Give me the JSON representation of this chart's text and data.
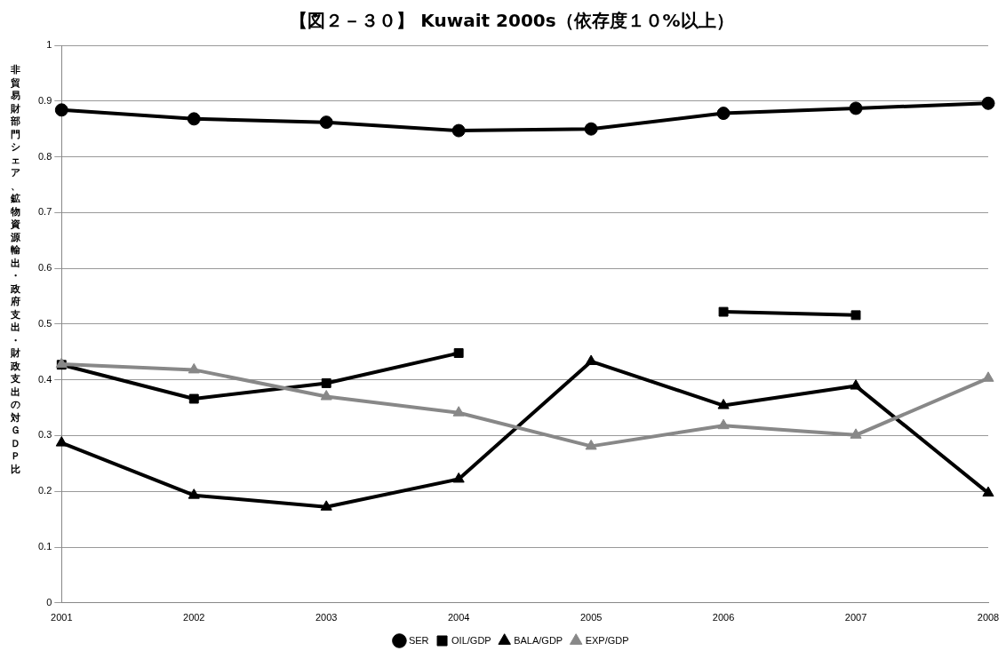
{
  "chart_data": {
    "type": "line",
    "title": "【図２－３０】 Kuwait 2000s（依存度１０%以上）",
    "ylabel": "非貿易財部門シェア、鉱物資源輸出・政府支出・財政支出の対ＧＤＰ比",
    "categories": [
      "2001",
      "2002",
      "2003",
      "2004",
      "2005",
      "2006",
      "2007",
      "2008"
    ],
    "series": [
      {
        "name": "SER",
        "color": "#000000",
        "marker": "circle",
        "values": [
          0.884,
          0.868,
          0.862,
          0.847,
          0.85,
          0.878,
          0.887,
          0.896
        ]
      },
      {
        "name": "OIL/GDP",
        "color": "#000000",
        "marker": "square",
        "values": [
          0.427,
          0.366,
          0.394,
          0.448,
          null,
          0.522,
          0.516,
          null
        ]
      },
      {
        "name": "BALA/GDP",
        "color": "#000000",
        "marker": "triangle",
        "values": [
          0.287,
          0.193,
          0.172,
          0.222,
          0.433,
          0.354,
          0.389,
          0.197
        ]
      },
      {
        "name": "EXP/GDP",
        "color": "#888888",
        "marker": "triangle",
        "values": [
          0.428,
          0.418,
          0.37,
          0.341,
          0.281,
          0.318,
          0.301,
          0.403
        ]
      }
    ],
    "ylim": [
      0,
      1
    ],
    "yticks": [
      0,
      0.1,
      0.2,
      0.3,
      0.4,
      0.5,
      0.6,
      0.7,
      0.8,
      0.9,
      1
    ],
    "grid": "y",
    "legend": "bottom",
    "line_style": "solid"
  }
}
